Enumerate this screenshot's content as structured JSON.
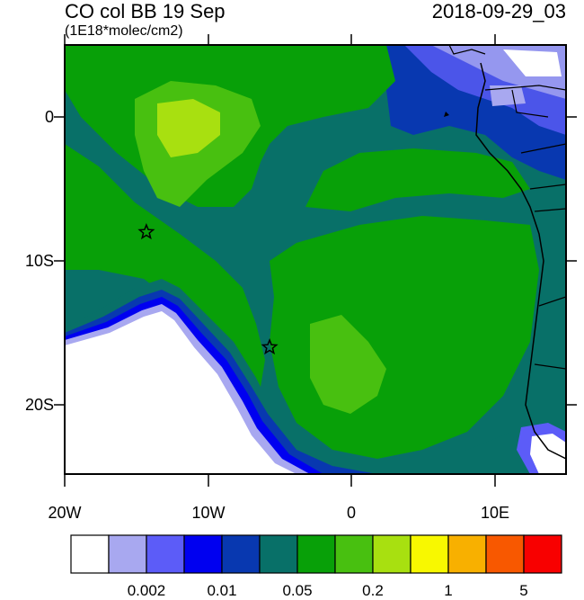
{
  "title": "CO col BB 19 Sep",
  "timestamp": "2018-09-29_03",
  "units": "(1E18*molec/cm2)",
  "lat_ticks": [
    {
      "label": "0",
      "value": 0
    },
    {
      "label": "10S",
      "value": -10
    },
    {
      "label": "20S",
      "value": -20
    }
  ],
  "lon_ticks": [
    {
      "label": "20W",
      "value": -20
    },
    {
      "label": "10W",
      "value": -10
    },
    {
      "label": "0",
      "value": 0
    },
    {
      "label": "10E",
      "value": 10
    }
  ],
  "colorbar": {
    "colors": [
      "#ffffff",
      "#a8a8f0",
      "#5c5cf8",
      "#0000f0",
      "#0838b0",
      "#087068",
      "#08a008",
      "#48c010",
      "#a8e010",
      "#f8f800",
      "#f8b000",
      "#f85800",
      "#f80000"
    ],
    "labels": [
      {
        "text": "0.002",
        "index": 2
      },
      {
        "text": "0.01",
        "index": 4
      },
      {
        "text": "0.05",
        "index": 6
      },
      {
        "text": "0.2",
        "index": 8
      },
      {
        "text": "1",
        "index": 10
      },
      {
        "text": "5",
        "index": 12
      }
    ]
  },
  "markers": [
    {
      "name": "star-marker-west",
      "lon": -14.3,
      "lat": -8
    },
    {
      "name": "star-marker-south",
      "lon": -5.7,
      "lat": -16
    }
  ]
}
